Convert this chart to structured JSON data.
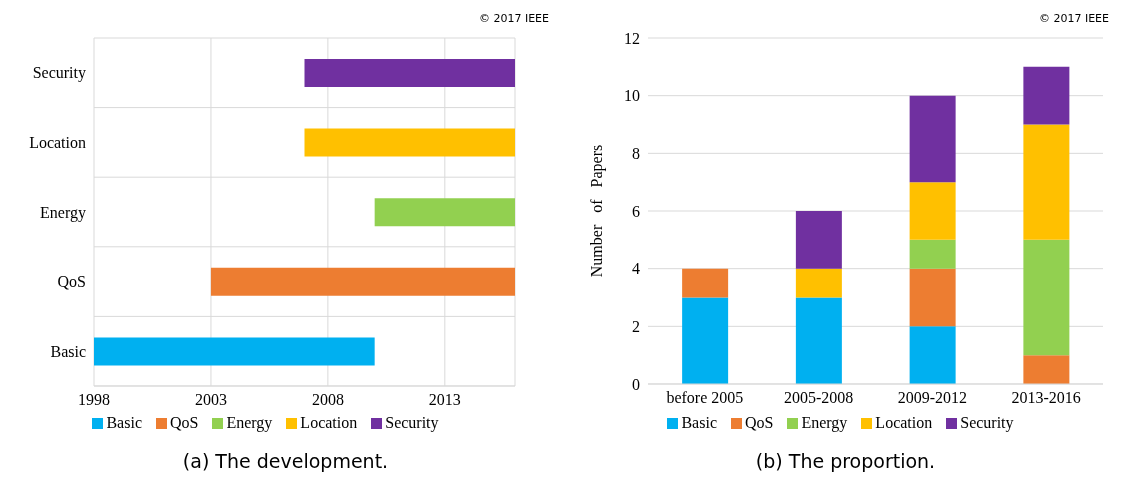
{
  "chart_data": [
    {
      "type": "bar",
      "orientation": "horizontal",
      "title": "(a) The development.",
      "categories": [
        "Security",
        "Location",
        "Energy",
        "QoS",
        "Basic"
      ],
      "series": [
        {
          "name": "Basic",
          "color": "#00b0f0",
          "base": [
            null,
            null,
            null,
            null,
            1998
          ],
          "values": [
            null,
            null,
            null,
            null,
            12
          ]
        },
        {
          "name": "QoS",
          "color": "#ed7d31",
          "base": [
            null,
            null,
            null,
            2003,
            null
          ],
          "values": [
            null,
            null,
            null,
            13,
            null
          ]
        },
        {
          "name": "Energy",
          "color": "#92d050",
          "base": [
            null,
            null,
            2010,
            null,
            null
          ],
          "values": [
            null,
            null,
            6,
            null,
            null
          ]
        },
        {
          "name": "Location",
          "color": "#ffc000",
          "base": [
            null,
            2007,
            null,
            null,
            null
          ],
          "values": [
            null,
            9,
            null,
            null,
            null
          ]
        },
        {
          "name": "Security",
          "color": "#7030a0",
          "base": [
            2007,
            null,
            null,
            null,
            null
          ],
          "values": [
            9,
            null,
            null,
            null,
            null
          ]
        }
      ],
      "xlim": [
        1998,
        2016
      ],
      "xticks": [
        1998,
        2003,
        2008,
        2013
      ],
      "grid": true,
      "legend": "bottom",
      "annotations": [
        "© 2017 IEEE"
      ]
    },
    {
      "type": "bar",
      "stacked": true,
      "title": "(b) The proportion.",
      "ylabel": "Number of Papers",
      "categories": [
        "before 2005",
        "2005-2008",
        "2009-2012",
        "2013-2016"
      ],
      "series": [
        {
          "name": "Basic",
          "color": "#00b0f0",
          "values": [
            3,
            3,
            2,
            0
          ]
        },
        {
          "name": "QoS",
          "color": "#ed7d31",
          "values": [
            1,
            0,
            2,
            1
          ]
        },
        {
          "name": "Energy",
          "color": "#92d050",
          "values": [
            0,
            0,
            1,
            4
          ]
        },
        {
          "name": "Location",
          "color": "#ffc000",
          "values": [
            0,
            1,
            2,
            4
          ]
        },
        {
          "name": "Security",
          "color": "#7030a0",
          "values": [
            0,
            2,
            3,
            2
          ]
        }
      ],
      "ylim": [
        0,
        12
      ],
      "yticks": [
        0,
        2,
        4,
        6,
        8,
        10,
        12
      ],
      "grid": "y",
      "legend": "bottom",
      "annotations": [
        "© 2017 IEEE"
      ]
    }
  ]
}
